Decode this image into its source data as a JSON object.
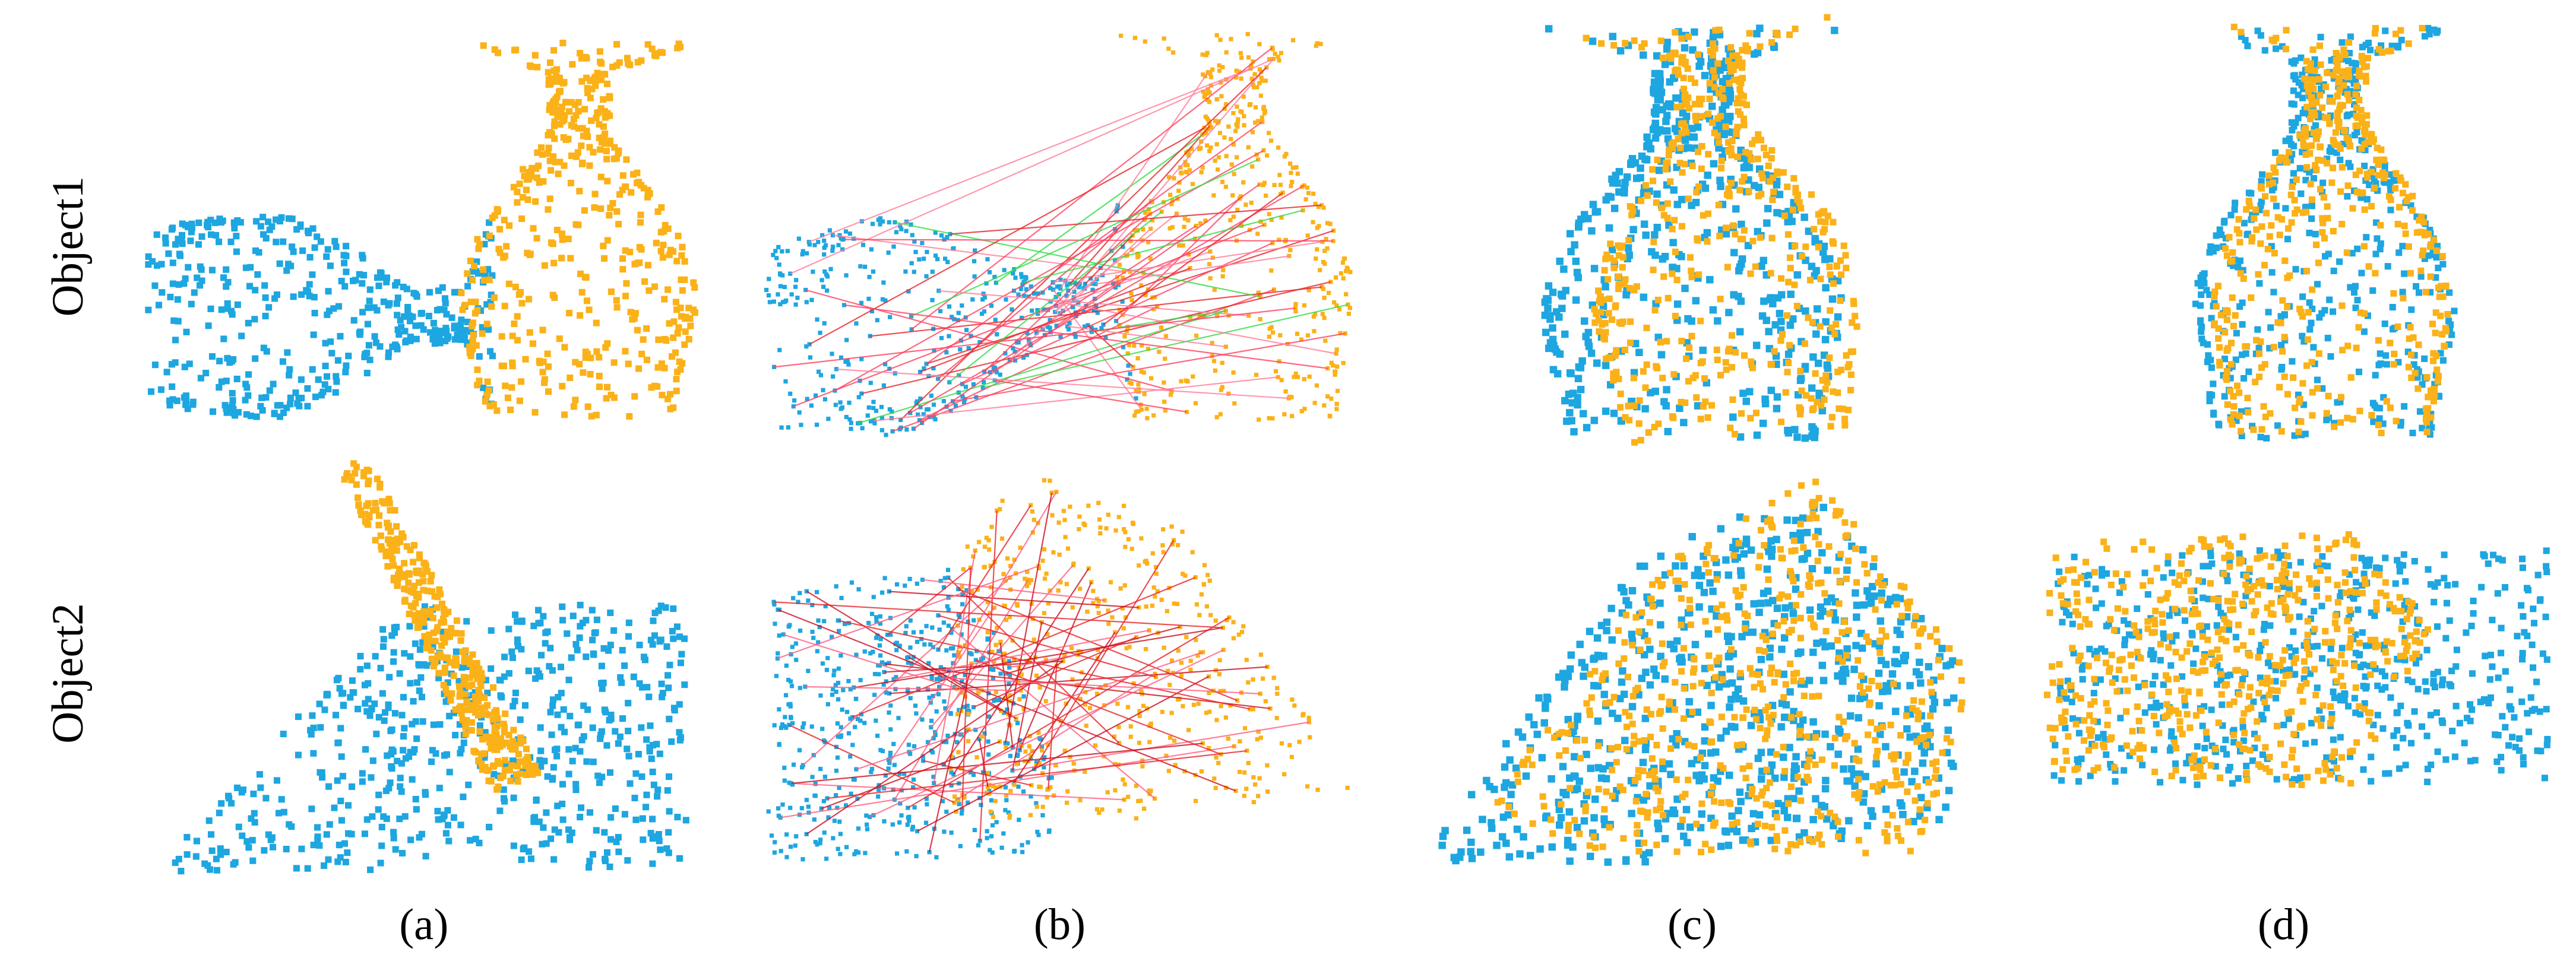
{
  "row_labels": [
    "Object1",
    "Object2"
  ],
  "column_labels": [
    "(a)",
    "(b)",
    "(c)",
    "(d)"
  ]
}
